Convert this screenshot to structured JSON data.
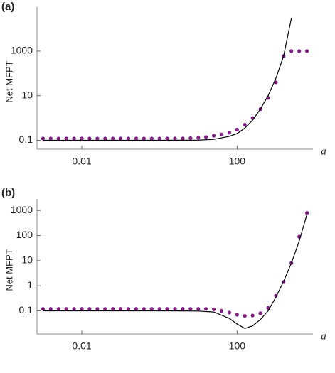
{
  "chart_data": [
    {
      "type": "scatter",
      "panel_label": "(a)",
      "xlabel": "a",
      "ylabel": "Net MFPT",
      "xscale": "log",
      "yscale": "log",
      "xlim": [
        0.0007,
        9000
      ],
      "ylim": [
        0.04,
        45000
      ],
      "xticks": [
        0.01,
        100
      ],
      "yticks": [
        0.1,
        10,
        1000
      ],
      "series": [
        {
          "mode": "markers",
          "color": "#2a2ad0",
          "x": [
            0.001,
            0.00158,
            0.00251,
            0.00398,
            0.00631,
            0.01,
            0.0158,
            0.0251,
            0.0398,
            0.0631,
            0.1,
            0.158,
            0.251,
            0.398,
            0.631,
            1,
            1.58,
            2.51,
            3.98,
            6.31,
            10,
            15.8,
            25.1,
            39.8,
            63.1,
            100,
            158,
            251,
            398,
            631,
            1000,
            1580,
            2510,
            3980,
            6310
          ],
          "values": [
            0.12,
            0.12,
            0.12,
            0.12,
            0.12,
            0.12,
            0.12,
            0.12,
            0.12,
            0.12,
            0.12,
            0.12,
            0.12,
            0.12,
            0.12,
            0.12,
            0.12,
            0.12,
            0.12,
            0.125,
            0.13,
            0.14,
            0.16,
            0.18,
            0.22,
            0.3,
            0.5,
            1,
            2.5,
            8,
            40,
            600,
            1000,
            1000,
            1000
          ]
        },
        {
          "mode": "markers",
          "color": "#c0105a",
          "x": [
            0.001,
            0.00158,
            0.00251,
            0.00398,
            0.00631,
            0.01,
            0.0158,
            0.0251,
            0.0398,
            0.0631,
            0.1,
            0.158,
            0.251,
            0.398,
            0.631,
            1,
            1.58,
            2.51,
            3.98,
            6.31,
            10,
            15.8,
            25.1,
            39.8,
            63.1,
            100,
            158,
            251,
            398,
            631,
            1000,
            1580,
            2510,
            3980,
            6310
          ],
          "values": [
            0.12,
            0.12,
            0.12,
            0.12,
            0.12,
            0.12,
            0.12,
            0.12,
            0.12,
            0.12,
            0.12,
            0.12,
            0.12,
            0.12,
            0.12,
            0.12,
            0.12,
            0.12,
            0.12,
            0.125,
            0.13,
            0.14,
            0.16,
            0.18,
            0.22,
            0.3,
            0.5,
            1,
            2.5,
            8,
            40,
            600,
            1000,
            1000,
            1000
          ]
        },
        {
          "mode": "line",
          "color": "#000000",
          "x": [
            0.001,
            0.01,
            0.1,
            1,
            10,
            25.1,
            63.1,
            100,
            158,
            251,
            398,
            631,
            1000,
            1580,
            2510
          ],
          "values": [
            0.1,
            0.1,
            0.1,
            0.1,
            0.102,
            0.11,
            0.15,
            0.2,
            0.35,
            0.8,
            2.5,
            10,
            60,
            600,
            30000
          ]
        }
      ]
    },
    {
      "type": "scatter",
      "panel_label": "(b)",
      "xlabel": "a",
      "ylabel": "Net MFPT",
      "xscale": "log",
      "yscale": "log",
      "xlim": [
        0.0007,
        9000
      ],
      "ylim": [
        0.012,
        1500
      ],
      "xticks": [
        0.01,
        100
      ],
      "yticks": [
        0.1,
        1,
        10,
        100,
        1000
      ],
      "series": [
        {
          "mode": "markers",
          "color": "#2a2ad0",
          "x": [
            0.001,
            0.00158,
            0.00251,
            0.00398,
            0.00631,
            0.01,
            0.0158,
            0.0251,
            0.0398,
            0.0631,
            0.1,
            0.158,
            0.251,
            0.398,
            0.631,
            1,
            1.58,
            2.51,
            3.98,
            6.31,
            10,
            15.8,
            25.1,
            39.8,
            63.1,
            100,
            158,
            251,
            398,
            631,
            1000,
            1580,
            2510,
            3980,
            6310
          ],
          "values": [
            0.12,
            0.12,
            0.12,
            0.12,
            0.12,
            0.12,
            0.12,
            0.12,
            0.12,
            0.12,
            0.12,
            0.12,
            0.12,
            0.12,
            0.12,
            0.12,
            0.12,
            0.12,
            0.12,
            0.12,
            0.12,
            0.12,
            0.115,
            0.1,
            0.085,
            0.07,
            0.063,
            0.065,
            0.08,
            0.13,
            0.4,
            1.4,
            8,
            90,
            800
          ]
        },
        {
          "mode": "markers",
          "color": "#c0105a",
          "x": [
            0.001,
            0.00158,
            0.00251,
            0.00398,
            0.00631,
            0.01,
            0.0158,
            0.0251,
            0.0398,
            0.0631,
            0.1,
            0.158,
            0.251,
            0.398,
            0.631,
            1,
            1.58,
            2.51,
            3.98,
            6.31,
            10,
            15.8,
            25.1,
            39.8,
            63.1,
            100,
            158,
            251,
            398,
            631,
            1000,
            1580,
            2510,
            3980,
            6310
          ],
          "values": [
            0.12,
            0.12,
            0.12,
            0.12,
            0.12,
            0.12,
            0.12,
            0.12,
            0.12,
            0.12,
            0.12,
            0.12,
            0.12,
            0.12,
            0.12,
            0.12,
            0.12,
            0.12,
            0.12,
            0.12,
            0.12,
            0.12,
            0.115,
            0.1,
            0.085,
            0.07,
            0.063,
            0.065,
            0.08,
            0.13,
            0.4,
            1.4,
            8,
            90,
            800
          ]
        },
        {
          "mode": "line",
          "color": "#000000",
          "x": [
            0.001,
            0.01,
            0.1,
            1,
            10,
            25.1,
            63.1,
            100,
            158,
            251,
            398,
            631,
            1000,
            1580,
            2510,
            3980,
            6310
          ],
          "values": [
            0.1,
            0.1,
            0.1,
            0.1,
            0.098,
            0.09,
            0.05,
            0.03,
            0.02,
            0.025,
            0.045,
            0.1,
            0.35,
            1.5,
            8,
            60,
            700
          ]
        }
      ]
    }
  ]
}
